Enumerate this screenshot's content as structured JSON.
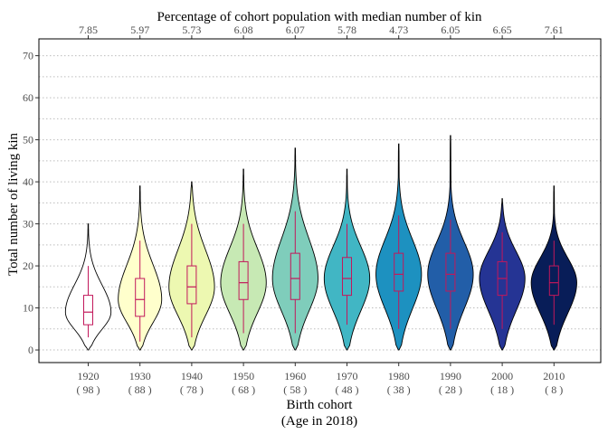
{
  "chart_data": {
    "type": "violin",
    "title": "Percentage of cohort population with median number of kin",
    "xlabel": [
      "Birth cohort",
      "(Age in 2018)"
    ],
    "ylabel": "Total number of living kin",
    "ylim": [
      -3,
      74
    ],
    "yticks": [
      0,
      10,
      20,
      30,
      40,
      50,
      60,
      70
    ],
    "grid": "horizontal dotted",
    "categories": [
      "1920",
      "1930",
      "1940",
      "1950",
      "1960",
      "1970",
      "1980",
      "1990",
      "2000",
      "2010"
    ],
    "ages": [
      "( 98 )",
      "( 88 )",
      "( 78 )",
      "( 68 )",
      "( 58 )",
      "( 48 )",
      "( 38 )",
      "( 28 )",
      "( 18 )",
      "( 8 )"
    ],
    "top_labels": [
      "7.85",
      "5.97",
      "5.73",
      "6.08",
      "6.07",
      "5.78",
      "4.73",
      "6.05",
      "6.65",
      "7.61"
    ],
    "fill_colors": [
      "#ffffff",
      "#ffffcc",
      "#edf8b1",
      "#c7e9b4",
      "#7fcdbb",
      "#41b6c4",
      "#1d91c0",
      "#225ea8",
      "#253494",
      "#081d58"
    ],
    "series": [
      {
        "min": 0,
        "max": 30,
        "q1": 6,
        "median": 9,
        "q3": 13,
        "lo": 3,
        "hi": 20,
        "mode": 9,
        "peak_width": 0.44
      },
      {
        "min": 0,
        "max": 39,
        "q1": 8,
        "median": 12,
        "q3": 17,
        "lo": 2,
        "hi": 26,
        "mode": 12,
        "peak_width": 0.42
      },
      {
        "min": 0,
        "max": 40,
        "q1": 11,
        "median": 15,
        "q3": 20,
        "lo": 3,
        "hi": 30,
        "mode": 15,
        "peak_width": 0.44
      },
      {
        "min": 0,
        "max": 43,
        "q1": 12,
        "median": 16,
        "q3": 21,
        "lo": 4,
        "hi": 30,
        "mode": 16,
        "peak_width": 0.44
      },
      {
        "min": 0,
        "max": 48,
        "q1": 12,
        "median": 17,
        "q3": 23,
        "lo": 4,
        "hi": 33,
        "mode": 17,
        "peak_width": 0.44
      },
      {
        "min": 0,
        "max": 43,
        "q1": 13,
        "median": 17,
        "q3": 22,
        "lo": 6,
        "hi": 30,
        "mode": 17,
        "peak_width": 0.44
      },
      {
        "min": 0,
        "max": 49,
        "q1": 14,
        "median": 18,
        "q3": 23,
        "lo": 5,
        "hi": 32,
        "mode": 18,
        "peak_width": 0.44
      },
      {
        "min": 0,
        "max": 51,
        "q1": 14,
        "median": 18,
        "q3": 23,
        "lo": 5,
        "hi": 31,
        "mode": 18,
        "peak_width": 0.44
      },
      {
        "min": 0,
        "max": 36,
        "q1": 13,
        "median": 17,
        "q3": 21,
        "lo": 5,
        "hi": 28,
        "mode": 17,
        "peak_width": 0.44
      },
      {
        "min": 0,
        "max": 39,
        "q1": 13,
        "median": 16,
        "q3": 20,
        "lo": 6,
        "hi": 26,
        "mode": 16,
        "peak_width": 0.44
      }
    ]
  }
}
